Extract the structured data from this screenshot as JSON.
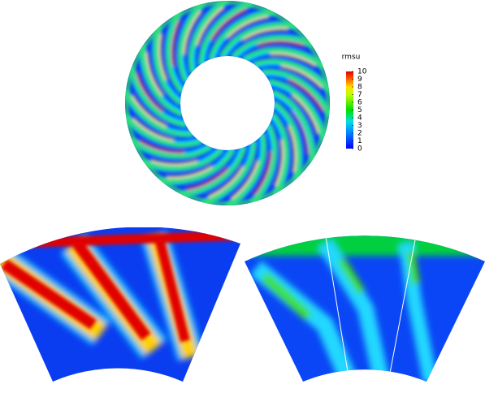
{
  "colorbar": {
    "title": "rmsu",
    "ticks": [
      0,
      1,
      2,
      3,
      4,
      5,
      6,
      7,
      8,
      9,
      10
    ],
    "lim": [
      0,
      10
    ]
  }
}
